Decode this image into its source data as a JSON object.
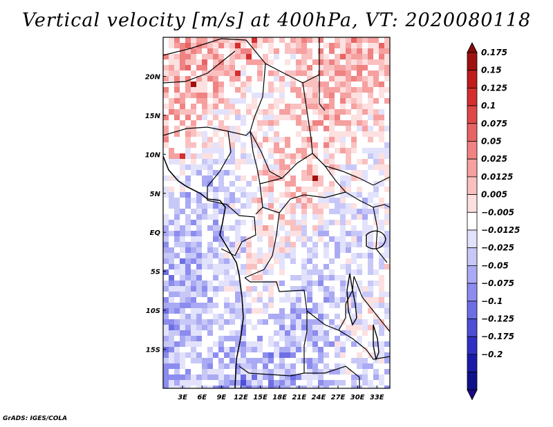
{
  "title": "Vertical velocity [m/s] at 400hPa, VT: 2020080118",
  "credit": "GrADS: IGES/COLA",
  "map": {
    "lon_range": [
      0,
      35
    ],
    "lat_range": [
      -20,
      25
    ],
    "lat_ticks": [
      "20N",
      "15N",
      "10N",
      "5N",
      "EQ",
      "5S",
      "10S",
      "15S"
    ],
    "lon_ticks": [
      "3E",
      "6E",
      "9E",
      "12E",
      "15E",
      "18E",
      "21E",
      "24E",
      "27E",
      "30E",
      "33E"
    ]
  },
  "colorbar": {
    "labels": [
      "0.175",
      "0.15",
      "0.125",
      "0.1",
      "0.075",
      "0.05",
      "0.025",
      "0.0125",
      "0.005",
      "−0.005",
      "−0.0125",
      "−0.025",
      "−0.05",
      "−0.075",
      "−0.1",
      "−0.125",
      "−0.175",
      "−0.2"
    ],
    "colors": [
      "#a01010",
      "#c01c1c",
      "#d42e2e",
      "#e04848",
      "#e86464",
      "#f08282",
      "#f6a0a0",
      "#fac0c0",
      "#fde0e0",
      "#ffffff",
      "#e2e2fc",
      "#c8c8f8",
      "#aaaaf4",
      "#8c8cee",
      "#6e6ee4",
      "#4e4ed6",
      "#3030c4",
      "#1a1aa8",
      "#10108a"
    ],
    "top_color": "#8a0a0a",
    "bottom_color": "#1a0a8a"
  }
}
